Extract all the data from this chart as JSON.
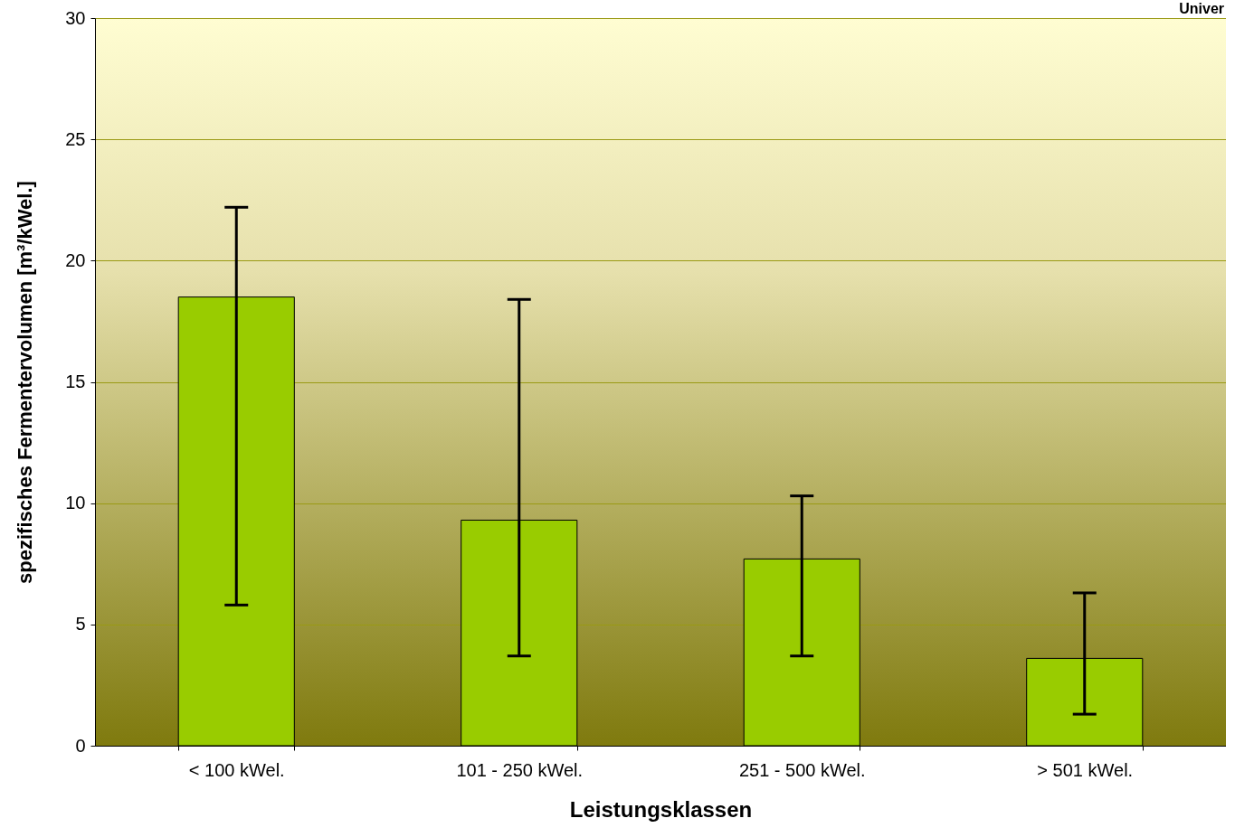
{
  "chart_data": {
    "type": "bar",
    "categories": [
      "< 100 kWel.",
      "101 - 250 kWel.",
      "251 - 500 kWel.",
      "> 501 kWel."
    ],
    "values": [
      18.5,
      9.3,
      7.7,
      3.6
    ],
    "errors": [
      [
        5.8,
        22.2
      ],
      [
        3.7,
        18.4
      ],
      [
        3.7,
        10.3
      ],
      [
        1.3,
        6.3
      ]
    ],
    "color": "#99cc00",
    "xlabel": "Leistungsklassen",
    "ylabel": "spezifisches Fermentervolumen [m³/kWel.]",
    "ylim": [
      0,
      30
    ],
    "yticks": [
      0,
      5,
      10,
      15,
      20,
      25,
      30
    ],
    "grid": "y",
    "annotations": [
      "Univer"
    ]
  }
}
